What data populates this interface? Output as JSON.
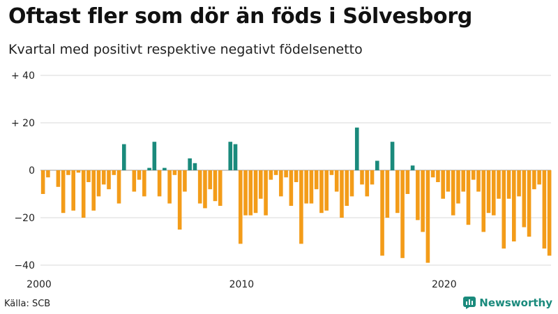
{
  "title": "Oftast fler som dör än föds i Sölvesborg",
  "subtitle": "Kvartal med positivt respektive negativt födelsenetto",
  "source": "Källa: SCB",
  "brand": {
    "name": "Newsworthy",
    "icon": "newsworthy-logo-icon"
  },
  "colors": {
    "positive": "#1a8a7c",
    "negative": "#f39c19",
    "grid": "#d8d8d8",
    "baseline": "#999999"
  },
  "chart_data": {
    "type": "bar",
    "title": "Oftast fler som dör än föds i Sölvesborg",
    "subtitle": "Kvartal med positivt respektive negativt födelsenetto",
    "xlabel": "",
    "ylabel": "",
    "ylim": [
      -40,
      40
    ],
    "yticks": [
      40,
      20,
      0,
      -20,
      -40
    ],
    "ytick_labels": [
      "+ 40",
      "+ 20",
      "0",
      "−20",
      "−40"
    ],
    "x_start": 2000,
    "quarters_per_year": 4,
    "xticks": [
      2000,
      2010,
      2020
    ],
    "xtick_labels": [
      "2000",
      "2010",
      "2020"
    ],
    "series": [
      {
        "name": "Födelsenetto",
        "values": [
          -10,
          -3,
          0,
          -7,
          -18,
          -2,
          -17,
          -1,
          -20,
          -5,
          -17,
          -11,
          -6,
          -8,
          -2,
          -14,
          11,
          0,
          -9,
          -4,
          -11,
          1,
          12,
          -11,
          1,
          -14,
          -2,
          -25,
          -9,
          5,
          3,
          -14,
          -16,
          -8,
          -13,
          -15,
          0,
          12,
          11,
          -31,
          -19,
          -19,
          -18,
          -12,
          -19,
          -4,
          -2,
          -11,
          -3,
          -15,
          -5,
          -31,
          -14,
          -14,
          -8,
          -18,
          -17,
          -2,
          -9,
          -20,
          -15,
          -11,
          18,
          -6,
          -11,
          -6,
          4,
          -36,
          -20,
          12,
          -18,
          -37,
          -10,
          2,
          -21,
          -26,
          -39,
          -3,
          -5,
          -12,
          -9,
          -19,
          -14,
          -9,
          -23,
          -4,
          -9,
          -26,
          -18,
          -19,
          -12,
          -33,
          -12,
          -30,
          -11,
          -24,
          -28,
          -8,
          -6,
          -33,
          -36
        ]
      }
    ]
  }
}
